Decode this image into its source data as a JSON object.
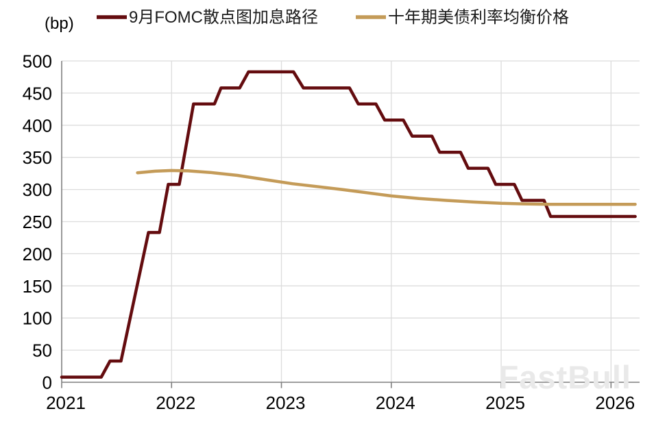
{
  "watermark": {
    "text": "FastBull"
  },
  "chart_data": {
    "type": "line",
    "title": "",
    "xlabel": "",
    "ylabel": "(bp)",
    "xlim": [
      2021,
      2026.26
    ],
    "ylim": [
      0,
      500
    ],
    "grid": true,
    "legend_position": "top",
    "x_ticks": [
      "2021",
      "2022",
      "2023",
      "2024",
      "2025",
      "2026"
    ],
    "y_ticks": [
      0,
      50,
      100,
      150,
      200,
      250,
      300,
      350,
      400,
      450,
      500
    ],
    "series": [
      {
        "name": "9月FOMC散点图加息路径",
        "color": "#640c0f",
        "style": "step-plateaus",
        "plateaus": [
          [
            2021.0,
            2021.36,
            8
          ],
          [
            2021.44,
            2021.54,
            33
          ],
          [
            2021.79,
            2021.89,
            233
          ],
          [
            2021.97,
            2022.07,
            308
          ],
          [
            2022.2,
            2022.39,
            433
          ],
          [
            2022.45,
            2022.62,
            458
          ],
          [
            2022.7,
            2023.11,
            483
          ],
          [
            2023.2,
            2023.62,
            458
          ],
          [
            2023.7,
            2023.86,
            433
          ],
          [
            2023.94,
            2024.11,
            408
          ],
          [
            2024.19,
            2024.37,
            383
          ],
          [
            2024.44,
            2024.63,
            358
          ],
          [
            2024.7,
            2024.88,
            333
          ],
          [
            2024.95,
            2025.12,
            308
          ],
          [
            2025.19,
            2025.39,
            283
          ],
          [
            2025.45,
            2026.22,
            258
          ]
        ]
      },
      {
        "name": "十年期美债利率均衡价格",
        "color": "#c49b58",
        "style": "line",
        "points": [
          [
            2021.69,
            326
          ],
          [
            2021.85,
            328.5
          ],
          [
            2022.0,
            329.5
          ],
          [
            2022.15,
            329
          ],
          [
            2022.35,
            326.5
          ],
          [
            2022.6,
            322
          ],
          [
            2022.85,
            315.5
          ],
          [
            2023.1,
            309
          ],
          [
            2023.35,
            304
          ],
          [
            2023.55,
            300
          ],
          [
            2023.8,
            294.5
          ],
          [
            2024.0,
            290
          ],
          [
            2024.25,
            286
          ],
          [
            2024.5,
            283
          ],
          [
            2024.75,
            280.5
          ],
          [
            2025.0,
            278.5
          ],
          [
            2025.2,
            277.6
          ],
          [
            2025.45,
            277
          ],
          [
            2025.8,
            277
          ],
          [
            2026.22,
            277
          ]
        ]
      }
    ]
  }
}
